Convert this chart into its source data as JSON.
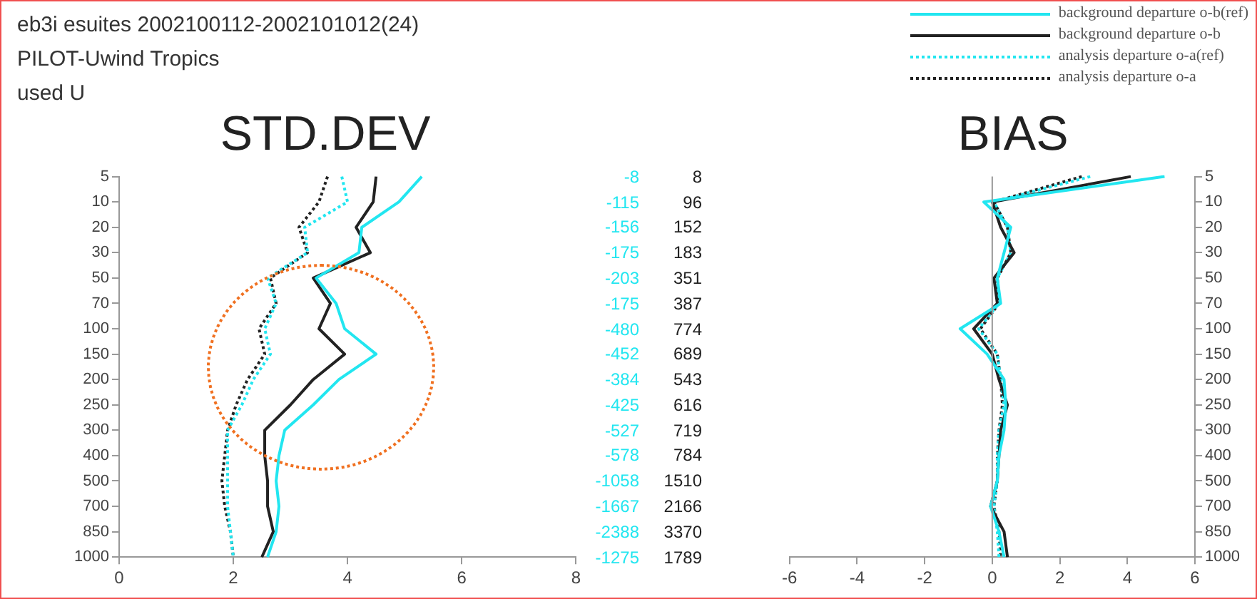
{
  "chart_data": [
    {
      "type": "line",
      "orientation": "horizontal",
      "title": "STD.DEV",
      "annotations": [
        "eb3i esuites 2002100112-2002101012(24)",
        "PILOT-Uwind  Tropics",
        "used U"
      ],
      "categories": [
        "5",
        "10",
        "20",
        "30",
        "50",
        "70",
        "100",
        "150",
        "200",
        "250",
        "300",
        "400",
        "500",
        "700",
        "850",
        "1000"
      ],
      "xlim": [
        0,
        8
      ],
      "xticks": [
        0,
        2,
        4,
        6,
        8
      ],
      "grid": false,
      "legend": false,
      "marker": "none",
      "series": [
        {
          "color": "#22e6f0",
          "line_style": "solid",
          "values": [
            5.3,
            4.9,
            4.25,
            4.2,
            3.45,
            3.8,
            3.95,
            4.5,
            3.85,
            3.4,
            2.9,
            2.8,
            2.75,
            2.8,
            2.75,
            2.6
          ]
        },
        {
          "color": "#222222",
          "line_style": "solid",
          "values": [
            4.5,
            4.45,
            4.15,
            4.4,
            3.4,
            3.7,
            3.5,
            3.95,
            3.4,
            3.0,
            2.55,
            2.55,
            2.6,
            2.6,
            2.7,
            2.5
          ]
        },
        {
          "color": "#22e6f0",
          "line_style": "dotted",
          "values": [
            3.9,
            4.0,
            3.25,
            3.3,
            2.6,
            2.75,
            2.55,
            2.65,
            2.35,
            2.15,
            1.9,
            1.9,
            1.9,
            1.9,
            1.95,
            2.0
          ]
        },
        {
          "color": "#222222",
          "line_style": "dotted",
          "values": [
            3.65,
            3.5,
            3.15,
            3.3,
            2.65,
            2.75,
            2.45,
            2.55,
            2.25,
            2.05,
            1.9,
            1.85,
            1.8,
            1.85,
            1.95,
            2.0
          ]
        }
      ]
    },
    {
      "type": "other",
      "annotations": [
        "-8",
        "8",
        "-115",
        "96",
        "-156",
        "152",
        "-175",
        "183",
        "-203",
        "351",
        "-175",
        "387",
        "-480",
        "774",
        "-452",
        "689",
        "-384",
        "543",
        "-425",
        "616",
        "-527",
        "719",
        "-578",
        "784",
        "-1058",
        "1510",
        "-1667",
        "2166",
        "-2388",
        "3370",
        "-1275",
        "1789"
      ]
    },
    {
      "type": "line",
      "orientation": "horizontal",
      "title": "BIAS",
      "categories": [
        "5",
        "10",
        "20",
        "30",
        "50",
        "70",
        "100",
        "150",
        "200",
        "250",
        "300",
        "400",
        "500",
        "700",
        "850",
        "1000"
      ],
      "xlim": [
        -6,
        6
      ],
      "xticks": [
        -6,
        -4,
        -2,
        0,
        2,
        4,
        6
      ],
      "grid": false,
      "legend": "top right",
      "marker": "none",
      "ref_lines": [
        {
          "axis": "x",
          "value": 0,
          "color": "#999999"
        }
      ],
      "series": [
        {
          "name": "background departure o-b(ref)",
          "color": "#22e6f0",
          "line_style": "solid",
          "values": [
            5.1,
            -0.25,
            0.55,
            0.35,
            0.15,
            0.25,
            -0.95,
            -0.15,
            0.35,
            0.4,
            0.35,
            0.2,
            0.15,
            -0.05,
            0.2,
            0.35
          ]
        },
        {
          "name": "background departure o-b",
          "color": "#222222",
          "line_style": "solid",
          "values": [
            4.1,
            0,
            0.25,
            0.65,
            0.05,
            0.15,
            -0.55,
            0,
            0.2,
            0.45,
            0.25,
            0.2,
            0.15,
            -0.05,
            0.35,
            0.45
          ]
        },
        {
          "name": "analysis departure o-a(ref)",
          "color": "#22e6f0",
          "line_style": "dotted",
          "values": [
            2.9,
            0.05,
            0.45,
            0.55,
            0.15,
            0.2,
            -0.4,
            0.15,
            0.25,
            0.35,
            0.2,
            0.15,
            0.15,
            0.05,
            0.15,
            0.2
          ]
        },
        {
          "name": "analysis departure o-a",
          "color": "#222222",
          "line_style": "dotted",
          "values": [
            2.65,
            0.05,
            0.45,
            0.55,
            0.15,
            0.2,
            -0.35,
            0.15,
            0.25,
            0.3,
            0.2,
            0.15,
            0.15,
            0.05,
            0.2,
            0.25
          ]
        }
      ]
    }
  ]
}
